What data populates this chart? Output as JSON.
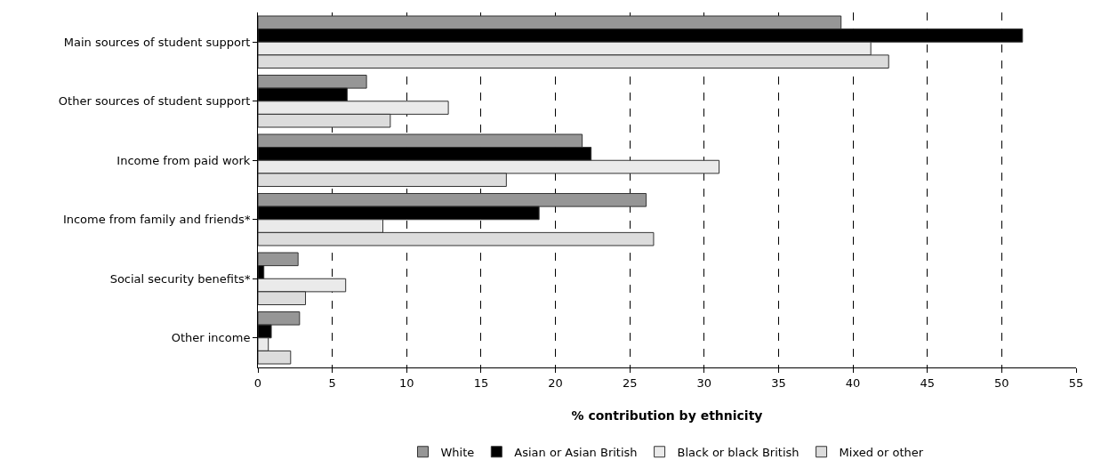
{
  "chart_data": {
    "type": "bar",
    "orientation": "horizontal",
    "xlabel": "% contribution by ethnicity",
    "categories": [
      "Main sources of student support",
      "Other sources of student support",
      "Income from paid work",
      "Income from family and friends*",
      "Social security benefits*",
      "Other income"
    ],
    "series": [
      {
        "name": "White",
        "color": "#969696",
        "values": [
          39.2,
          7.3,
          21.8,
          26.1,
          2.7,
          2.8
        ]
      },
      {
        "name": "Asian or Asian British",
        "color": "#000000",
        "values": [
          51.4,
          6.0,
          22.4,
          18.9,
          0.4,
          0.9
        ]
      },
      {
        "name": "Black or black British",
        "color": "#eaeaea",
        "values": [
          41.2,
          12.8,
          31.0,
          8.4,
          5.9,
          0.7
        ]
      },
      {
        "name": "Mixed or other",
        "color": "#dcdcdc",
        "values": [
          42.4,
          8.9,
          16.7,
          26.6,
          3.2,
          2.2
        ]
      }
    ],
    "xlim": [
      0,
      55
    ],
    "xticks": [
      0,
      5,
      10,
      15,
      20,
      25,
      30,
      35,
      40,
      45,
      50,
      55
    ],
    "grid": "x",
    "legend": "bottom"
  }
}
